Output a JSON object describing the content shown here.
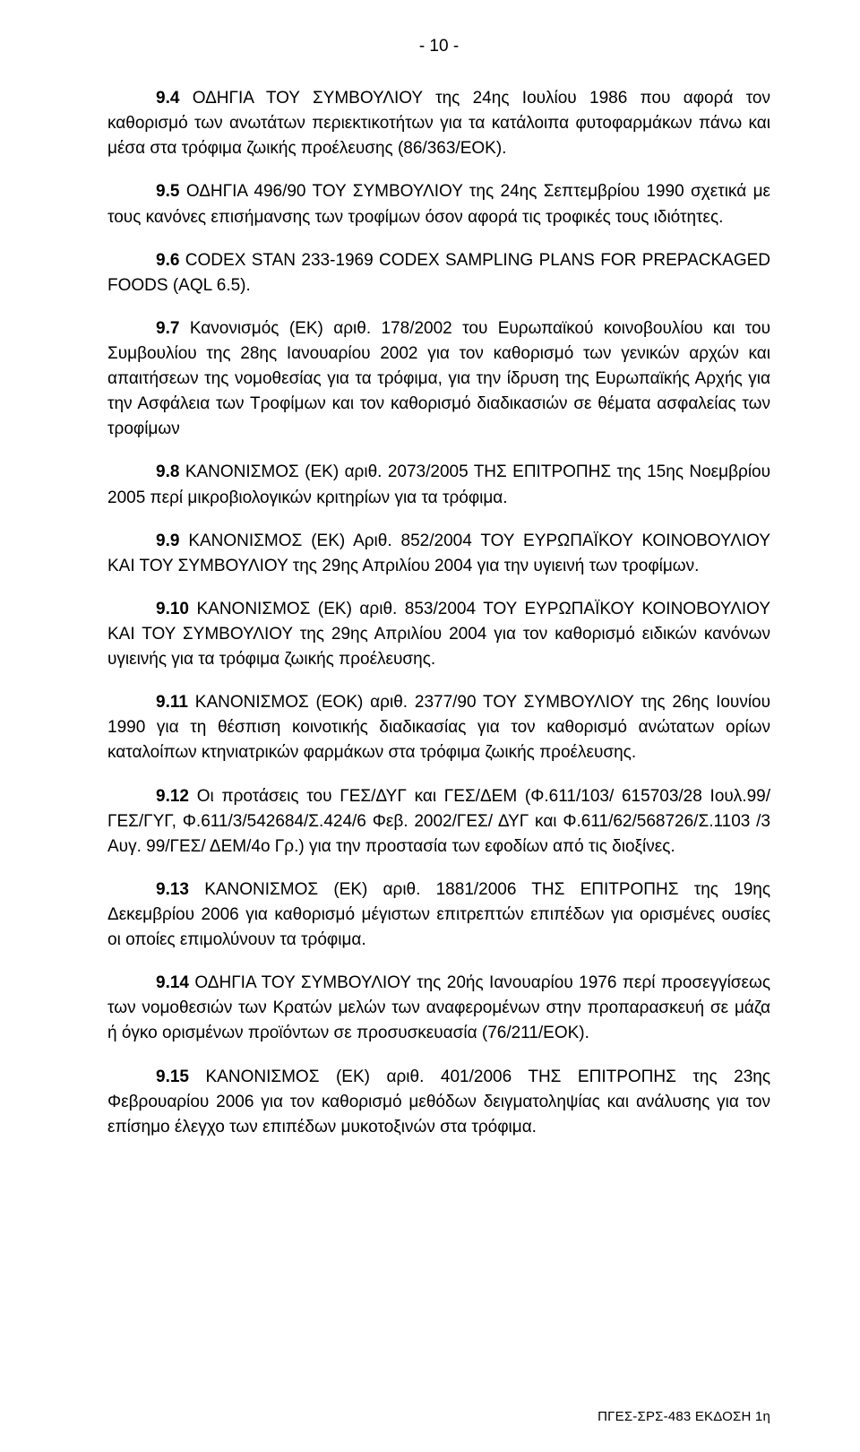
{
  "pageNumber": "- 10 -",
  "paragraphs": [
    {
      "lead": "9.4",
      "text": "ΟΔΗΓΙΑ ΤΟΥ ΣΥΜΒΟΥΛΙΟΥ της 24ης Ιουλίου 1986 που αφορά τον καθορισμό των ανωτάτων περιεκτικοτήτων για τα κατάλοιπα φυτοφαρμάκων πάνω και μέσα στα τρόφιμα ζωικής προέλευσης (86/363/ΕΟΚ)."
    },
    {
      "lead": "9.5",
      "text": "ΟΔΗΓΙΑ 496/90 ΤΟΥ ΣΥΜΒΟΥΛΙΟΥ της 24ης Σεπτεμβρίου 1990 σχετικά με τους κανόνες επισήμανσης των τροφίμων όσον αφορά τις τροφικές τους ιδιότητες."
    },
    {
      "lead": "9.6",
      "text": "CODEX STAN 233-1969 CODEX SAMPLING PLANS FOR PREPACKAGED FOODS (AQL 6.5)."
    },
    {
      "lead": "9.7",
      "text": "Κανονισμός (ΕΚ) αριθ. 178/2002 του Ευρωπαϊκού κοινοβουλίου και του Συμβουλίου της 28ης Ιανουαρίου 2002 για τον καθορισμό των γενικών αρχών και απαιτήσεων της νομοθεσίας για τα τρόφιμα, για την ίδρυση της Ευρωπαϊκής Αρχής για την Ασφάλεια των Τροφίμων και τον καθορισμό διαδικασιών σε θέματα ασφαλείας των τροφίμων"
    },
    {
      "lead": "9.8",
      "text": "ΚΑΝΟΝΙΣΜΟΣ (ΕΚ) αριθ. 2073/2005 ΤΗΣ ΕΠΙΤΡΟΠΗΣ της 15ης Νοεμβρίου 2005 περί μικροβιολογικών κριτηρίων για τα τρόφιμα."
    },
    {
      "lead": "9.9",
      "text": "ΚΑΝΟΝΙΣΜΟΣ (ΕΚ) Αριθ. 852/2004 ΤΟΥ ΕΥΡΩΠΑΪΚΟΥ ΚΟΙΝΟΒΟΥΛΙΟΥ ΚΑΙ ΤΟΥ ΣΥΜΒΟΥΛΙΟΥ της 29ης Απριλίου 2004 για την υγιεινή των τροφίμων."
    },
    {
      "lead": "9.10",
      "text": "ΚΑΝΟΝΙΣΜΟΣ (ΕΚ) αριθ. 853/2004 ΤΟΥ ΕΥΡΩΠΑΪΚΟΥ ΚΟΙΝΟΒΟΥΛΙΟΥ ΚΑΙ ΤΟΥ ΣΥΜΒΟΥΛΙΟΥ της 29ης Απριλίου 2004 για τον καθορισμό ειδικών κανόνων υγιεινής για τα τρόφιμα ζωικής προέλευσης."
    },
    {
      "lead": "9.11",
      "text": "ΚΑΝΟΝΙΣΜΟΣ (ΕΟΚ) αριθ. 2377/90 ΤΟΥ ΣΥΜΒΟΥΛΙΟΥ της 26ης Ιουνίου 1990 για τη θέσπιση κοινοτικής διαδικασίας για τον καθορισμό ανώτατων ορίων καταλοίπων κτηνιατρικών φαρμάκων στα τρόφιμα ζωικής προέλευσης."
    },
    {
      "lead": "9.12",
      "text": "Οι προτάσεις του ΓΕΣ/ΔΥΓ και ΓΕΣ/ΔΕΜ (Φ.611/103/ 615703/28 Ιουλ.99/ ΓΕΣ/ΓΥΓ, Φ.611/3/542684/Σ.424/6 Φεβ. 2002/ΓΕΣ/ ΔΥΓ και Φ.611/62/568726/Σ.1103 /3 Αυγ. 99/ΓΕΣ/ ΔΕΜ/4ο Γρ.) για την προστασία των εφοδίων από τις διοξίνες."
    },
    {
      "lead": "9.13",
      "text": "ΚΑΝΟΝΙΣΜΟΣ (ΕΚ) αριθ. 1881/2006 ΤΗΣ ΕΠΙΤΡΟΠΗΣ της 19ης Δεκεμβρίου 2006 για καθορισμό μέγιστων επιτρεπτών επιπέδων για ορισμένες ουσίες οι οποίες επιμολύνουν τα τρόφιμα."
    },
    {
      "lead": "9.14",
      "text": "ΟΔΗΓΙΑ ΤΟΥ ΣΥΜΒΟΥΛΙΟΥ της 20ής Ιανουαρίου 1976 περί προσεγγίσεως των νομοθεσιών των Κρατών μελών των αναφερομένων στην προπαρασκευή σε μάζα ή όγκο ορισμένων προϊόντων σε προσυσκευασία (76/211/ΕΟΚ)."
    },
    {
      "lead": "9.15",
      "text": "ΚΑΝΟΝΙΣΜΟΣ (ΕΚ) αριθ. 401/2006 ΤΗΣ ΕΠΙΤΡΟΠΗΣ της 23ης Φεβρουαρίου 2006 για τον καθορισμό μεθόδων δειγματοληψίας και ανάλυσης για τον επίσημο έλεγχο των επιπέδων μυκοτοξινών στα τρόφιμα."
    }
  ],
  "footer": "ΠΓΕΣ-ΣΡΣ-483 ΕΚΔΟΣΗ 1η"
}
